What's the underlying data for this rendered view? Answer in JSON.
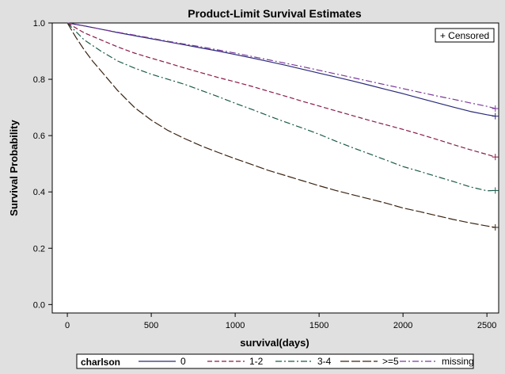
{
  "chart_data": {
    "type": "line",
    "title": "Product-Limit Survival Estimates",
    "xlabel": "survival(days)",
    "ylabel": "Survival Probability",
    "xlim": [
      -90,
      2570
    ],
    "ylim": [
      -0.03,
      1.0
    ],
    "xticks": [
      0,
      500,
      1000,
      1500,
      2000,
      2500
    ],
    "yticks": [
      0.0,
      0.2,
      0.4,
      0.6,
      0.8,
      1.0
    ],
    "xtick_labels": [
      "0",
      "500",
      "1000",
      "1500",
      "2000",
      "2500"
    ],
    "ytick_labels": [
      "0.0",
      "0.2",
      "0.4",
      "0.6",
      "0.8",
      "1.0"
    ],
    "grid": false,
    "legend_title": "charlson",
    "legend_placement": "bottom",
    "censored_label": "+ Censored",
    "censored_placement": "top-right",
    "series": [
      {
        "name": "0",
        "color": "#2a2a7a",
        "dash": "solid",
        "x": [
          0,
          100,
          200,
          300,
          400,
          500,
          600,
          700,
          800,
          900,
          1000,
          1100,
          1200,
          1300,
          1400,
          1500,
          1600,
          1700,
          1800,
          1900,
          2000,
          2100,
          2200,
          2300,
          2400,
          2500,
          2550
        ],
        "y": [
          1.0,
          0.99,
          0.978,
          0.966,
          0.955,
          0.944,
          0.933,
          0.922,
          0.911,
          0.9,
          0.888,
          0.876,
          0.863,
          0.85,
          0.836,
          0.822,
          0.808,
          0.794,
          0.779,
          0.764,
          0.749,
          0.733,
          0.717,
          0.701,
          0.686,
          0.674,
          0.669
        ]
      },
      {
        "name": "1-2",
        "color": "#8a1a4a",
        "dash": "dashed",
        "x": [
          0,
          100,
          200,
          300,
          400,
          500,
          600,
          700,
          800,
          900,
          1000,
          1100,
          1200,
          1300,
          1400,
          1500,
          1600,
          1700,
          1800,
          1900,
          2000,
          2100,
          2200,
          2300,
          2400,
          2500,
          2550
        ],
        "y": [
          1.0,
          0.965,
          0.94,
          0.915,
          0.893,
          0.875,
          0.858,
          0.84,
          0.823,
          0.806,
          0.791,
          0.775,
          0.757,
          0.74,
          0.722,
          0.705,
          0.688,
          0.671,
          0.654,
          0.638,
          0.622,
          0.605,
          0.587,
          0.568,
          0.55,
          0.533,
          0.524
        ]
      },
      {
        "name": "3-4",
        "color": "#1a5a4a",
        "dash": "dashdot",
        "x": [
          0,
          100,
          200,
          300,
          400,
          500,
          600,
          700,
          800,
          900,
          1000,
          1100,
          1200,
          1300,
          1400,
          1500,
          1600,
          1700,
          1800,
          1900,
          2000,
          2100,
          2200,
          2300,
          2400,
          2500,
          2550
        ],
        "y": [
          1.0,
          0.94,
          0.9,
          0.865,
          0.84,
          0.818,
          0.8,
          0.782,
          0.76,
          0.738,
          0.715,
          0.693,
          0.67,
          0.648,
          0.627,
          0.605,
          0.58,
          0.557,
          0.535,
          0.513,
          0.49,
          0.473,
          0.455,
          0.437,
          0.418,
          0.404,
          0.405
        ]
      },
      {
        "name": ">=5",
        "color": "#3a2412",
        "dash": "longdash",
        "x": [
          0,
          50,
          100,
          150,
          200,
          300,
          400,
          500,
          600,
          700,
          800,
          900,
          1000,
          1100,
          1200,
          1300,
          1400,
          1500,
          1600,
          1700,
          1800,
          1900,
          2000,
          2100,
          2200,
          2300,
          2400,
          2500,
          2550
        ],
        "y": [
          1.0,
          0.95,
          0.905,
          0.865,
          0.83,
          0.76,
          0.7,
          0.655,
          0.618,
          0.589,
          0.563,
          0.54,
          0.518,
          0.497,
          0.476,
          0.458,
          0.44,
          0.422,
          0.405,
          0.39,
          0.375,
          0.36,
          0.343,
          0.33,
          0.316,
          0.302,
          0.29,
          0.279,
          0.274
        ]
      },
      {
        "name": "missing",
        "color": "#7a3a9a",
        "dash": "dashdot",
        "x": [
          0,
          100,
          200,
          300,
          400,
          500,
          600,
          700,
          800,
          900,
          1000,
          1100,
          1200,
          1300,
          1400,
          1500,
          1600,
          1700,
          1800,
          1900,
          2000,
          2100,
          2200,
          2300,
          2400,
          2500,
          2550
        ],
        "y": [
          1.0,
          0.99,
          0.978,
          0.967,
          0.957,
          0.946,
          0.935,
          0.925,
          0.915,
          0.904,
          0.893,
          0.881,
          0.869,
          0.857,
          0.845,
          0.832,
          0.819,
          0.806,
          0.793,
          0.78,
          0.767,
          0.754,
          0.741,
          0.729,
          0.716,
          0.704,
          0.696
        ]
      }
    ],
    "censored_points": [
      {
        "series": "0",
        "x": 2550,
        "y": 0.669
      },
      {
        "series": "1-2",
        "x": 2550,
        "y": 0.524
      },
      {
        "series": "3-4",
        "x": 2550,
        "y": 0.405
      },
      {
        "series": ">=5",
        "x": 2550,
        "y": 0.274
      },
      {
        "series": "missing",
        "x": 2550,
        "y": 0.696
      }
    ]
  }
}
